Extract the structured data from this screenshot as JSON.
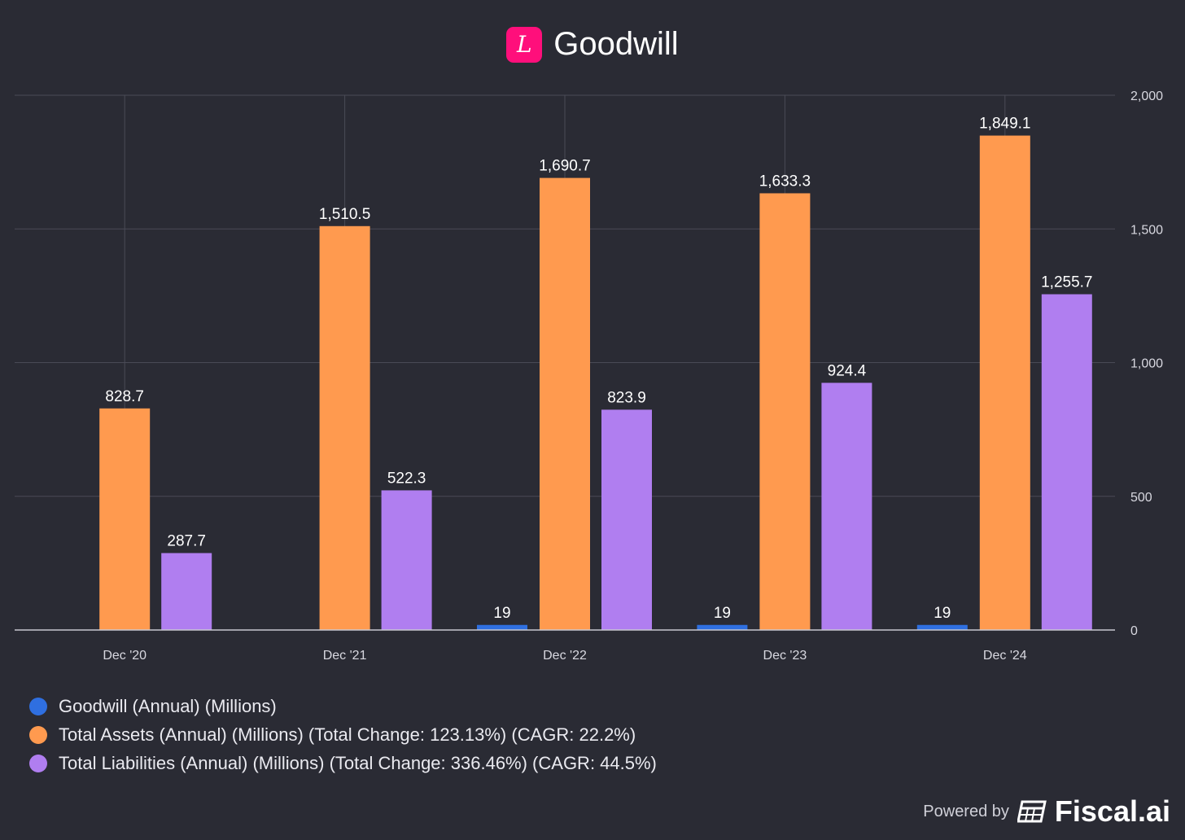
{
  "header": {
    "title": "Goodwill",
    "logo_letter": "L"
  },
  "chart_data": {
    "type": "bar",
    "title": "Goodwill",
    "categories": [
      "Dec '20",
      "Dec '21",
      "Dec '22",
      "Dec '23",
      "Dec '24"
    ],
    "series": [
      {
        "name": "Goodwill (Annual) (Millions)",
        "color": "#2f6fe0",
        "values": [
          null,
          null,
          19,
          19,
          19
        ],
        "labels": [
          "",
          "",
          "19",
          "19",
          "19"
        ]
      },
      {
        "name": "Total Assets (Annual) (Millions) (Total Change: 123.13%) (CAGR: 22.2%)",
        "color": "#ff9a4f",
        "values": [
          828.7,
          1510.5,
          1690.7,
          1633.3,
          1849.1
        ],
        "labels": [
          "828.7",
          "1,510.5",
          "1,690.7",
          "1,633.3",
          "1,849.1"
        ]
      },
      {
        "name": "Total Liabilities (Annual) (Millions) (Total Change: 336.46%) (CAGR: 44.5%)",
        "color": "#b07ef0",
        "values": [
          287.7,
          522.3,
          823.9,
          924.4,
          1255.7
        ],
        "labels": [
          "287.7",
          "522.3",
          "823.9",
          "924.4",
          "1,255.7"
        ]
      }
    ],
    "yticks": [
      0,
      500,
      1000,
      1500,
      2000
    ],
    "ytick_labels": [
      "0",
      "500",
      "1,000",
      "1,500",
      "2,000"
    ],
    "ylim": [
      0,
      2000
    ],
    "y_axis_side": "right",
    "grid": true,
    "legend_position": "bottom-left"
  },
  "footer": {
    "powered_by": "Powered by",
    "brand": "Fiscal.ai"
  }
}
